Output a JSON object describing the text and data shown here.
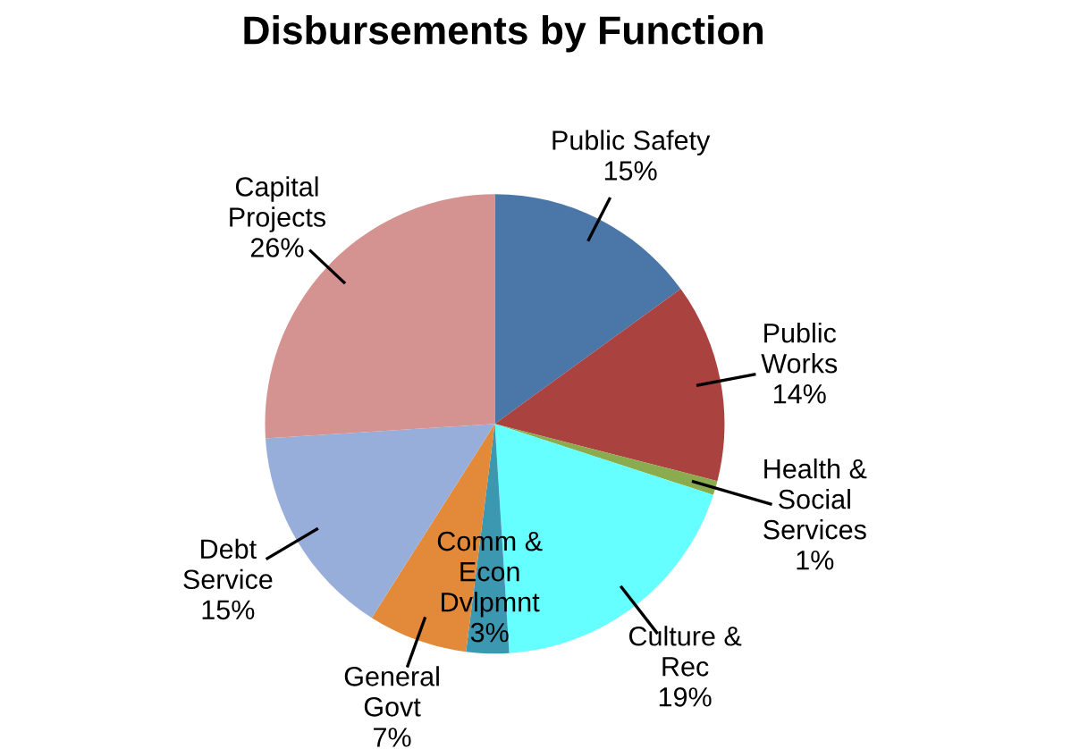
{
  "chart_data": {
    "type": "pie",
    "title": "Disbursements by Function",
    "categories": [
      "Public Safety",
      "Public\nWorks",
      "Health &\nSocial\nServices",
      "Culture &\nRec",
      "Comm &\nEcon\nDvlpmnt",
      "General\nGovt",
      "Debt\nService",
      "Capital\nProjects"
    ],
    "values": [
      15,
      14,
      1,
      19,
      3,
      7,
      15,
      26
    ],
    "value_labels": [
      "15%",
      "14%",
      "1%",
      "19%",
      "3%",
      "7%",
      "15%",
      "26%"
    ],
    "colors": [
      "#4a76a8",
      "#aa4240",
      "#8aac4e",
      "#66ffff",
      "#3b98b0",
      "#e38a3a",
      "#97aedb",
      "#d49291"
    ],
    "legend": false
  }
}
